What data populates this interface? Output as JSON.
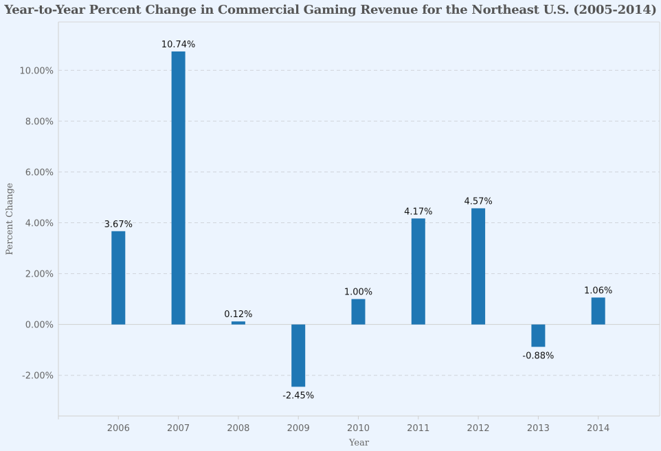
{
  "chart_data": {
    "type": "bar",
    "title": "Year-to-Year Percent Change in Commercial Gaming Revenue for the Northeast U.S. (2005-2014)",
    "xlabel": "Year",
    "ylabel": "Percent Change",
    "categories": [
      "2006",
      "2007",
      "2008",
      "2009",
      "2010",
      "2011",
      "2012",
      "2013",
      "2014"
    ],
    "values": [
      3.67,
      10.74,
      0.12,
      -2.45,
      1.0,
      4.17,
      4.57,
      -0.88,
      1.06
    ],
    "data_labels": [
      "3.67%",
      "10.74%",
      "0.12%",
      "-2.45%",
      "1.00%",
      "4.17%",
      "4.57%",
      "-0.88%",
      "1.06%"
    ],
    "yticks": [
      -2,
      0,
      2,
      4,
      6,
      8,
      10
    ],
    "ytick_labels": [
      "-2.00%",
      "0.00%",
      "2.00%",
      "4.00%",
      "6.00%",
      "8.00%",
      "10.00%"
    ],
    "ylim": [
      -3.6,
      11.9
    ],
    "grid": true,
    "colors": {
      "bar": "#1f77b4",
      "background": "#ecf4fe",
      "grid": "#d0d4da"
    }
  }
}
